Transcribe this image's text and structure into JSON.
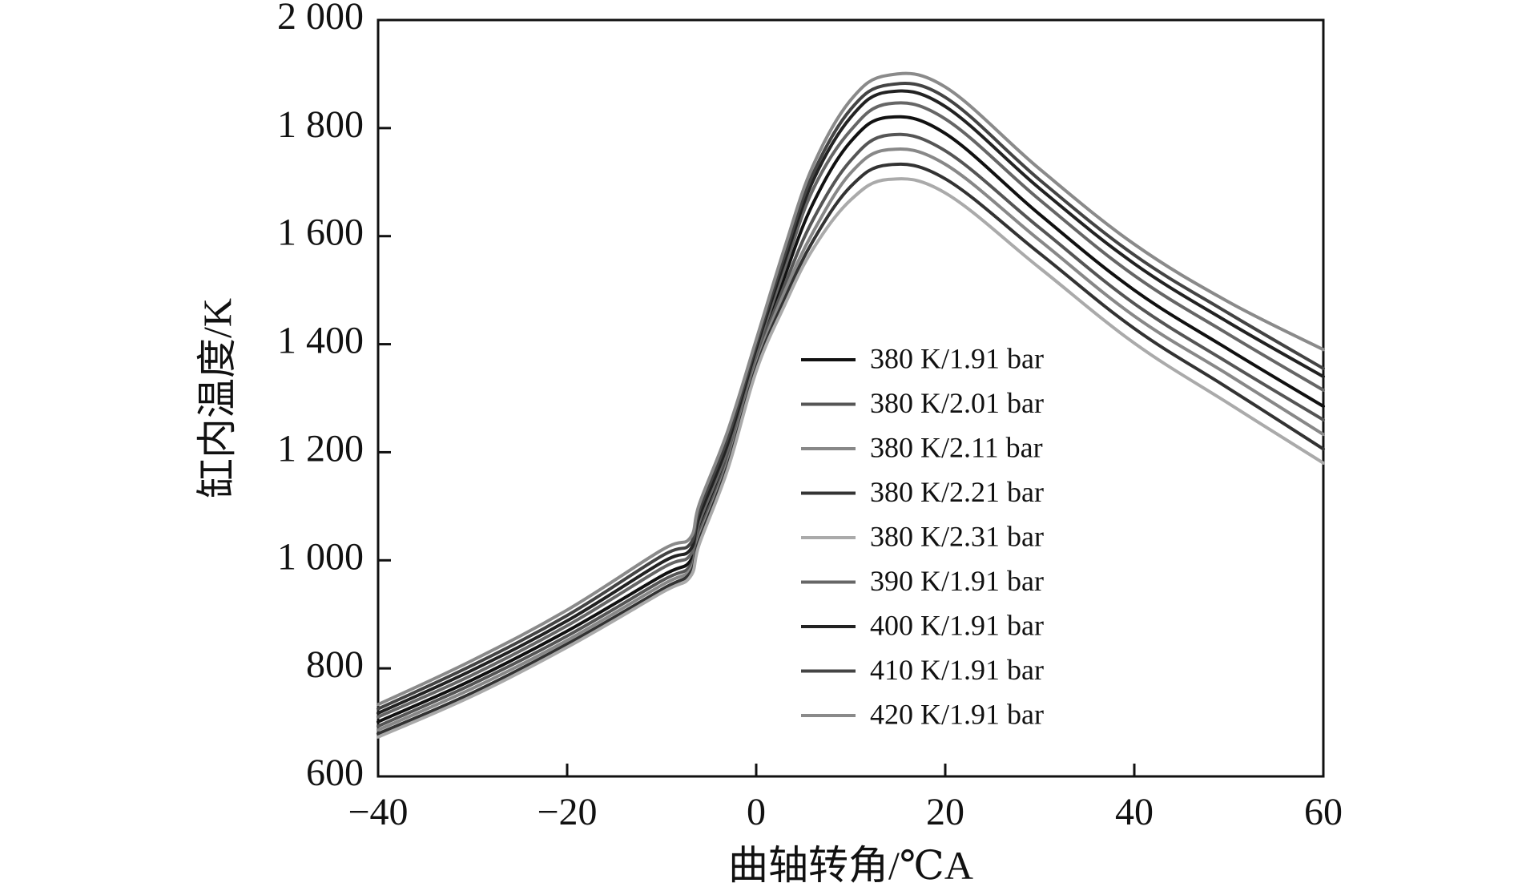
{
  "chart_data": {
    "type": "line",
    "title": "",
    "xlabel": "曲轴转角/℃A",
    "ylabel": "缸内温度/K",
    "xlim": [
      -40,
      60
    ],
    "ylim": [
      600,
      2000
    ],
    "xticks": [
      -40,
      -20,
      0,
      20,
      40,
      60
    ],
    "xtick_labels": [
      "−40",
      "−20",
      "0",
      "20",
      "40",
      "60"
    ],
    "yticks": [
      600,
      800,
      1000,
      1200,
      1400,
      1600,
      1800,
      2000
    ],
    "ytick_labels": [
      "600",
      "800",
      "1 000",
      "1 200",
      "1 400",
      "1 600",
      "1 800",
      "2 000"
    ],
    "grid": false,
    "legend_position": "center-right",
    "x": [
      -40,
      -30,
      -20,
      -10,
      -7,
      -6,
      -3,
      0,
      3,
      6,
      10,
      14,
      20,
      30,
      40,
      50,
      60
    ],
    "series": [
      {
        "name": "380 K/1.91 bar",
        "color": "#111111",
        "values": [
          701,
          779,
          869,
          971,
          998,
          1060,
          1195,
          1375,
          1525,
          1660,
          1775,
          1820,
          1790,
          1640,
          1500,
          1390,
          1285
        ]
      },
      {
        "name": "380 K/2.01 bar",
        "color": "#555555",
        "values": [
          693,
          771,
          860,
          962,
          989,
          1052,
          1188,
          1369,
          1509,
          1630,
          1740,
          1787,
          1758,
          1615,
          1475,
          1365,
          1260
        ]
      },
      {
        "name": "380 K/2.11 bar",
        "color": "#888888",
        "values": [
          686,
          763,
          852,
          954,
          982,
          1044,
          1181,
          1362,
          1496,
          1607,
          1717,
          1760,
          1733,
          1592,
          1452,
          1343,
          1233
        ]
      },
      {
        "name": "380 K/2.21 bar",
        "color": "#333333",
        "values": [
          679,
          755,
          845,
          946,
          976,
          1038,
          1175,
          1356,
          1483,
          1591,
          1692,
          1732,
          1706,
          1568,
          1429,
          1318,
          1206
        ]
      },
      {
        "name": "380 K/2.31 bar",
        "color": "#aaaaaa",
        "values": [
          673,
          749,
          839,
          940,
          969,
          1031,
          1169,
          1350,
          1472,
          1576,
          1667,
          1705,
          1680,
          1541,
          1402,
          1290,
          1180
        ]
      },
      {
        "name": "390 K/1.91 bar",
        "color": "#666666",
        "values": [
          710,
          788,
          879,
          985,
          1009,
          1072,
          1206,
          1384,
          1540,
          1686,
          1796,
          1845,
          1817,
          1667,
          1527,
          1418,
          1315
        ]
      },
      {
        "name": "400 K/1.91 bar",
        "color": "#222222",
        "values": [
          717,
          797,
          888,
          996,
          1019,
          1082,
          1216,
          1392,
          1553,
          1702,
          1820,
          1867,
          1840,
          1688,
          1549,
          1440,
          1340
        ]
      },
      {
        "name": "410 K/1.91 bar",
        "color": "#444444",
        "values": [
          725,
          806,
          898,
          1008,
          1030,
          1094,
          1228,
          1400,
          1565,
          1715,
          1835,
          1880,
          1857,
          1704,
          1565,
          1457,
          1355
        ]
      },
      {
        "name": "420 K/1.91 bar",
        "color": "#8a8a8a",
        "values": [
          733,
          815,
          908,
          1019,
          1041,
          1105,
          1240,
          1408,
          1578,
          1730,
          1852,
          1898,
          1876,
          1724,
          1585,
          1478,
          1390
        ]
      }
    ]
  }
}
